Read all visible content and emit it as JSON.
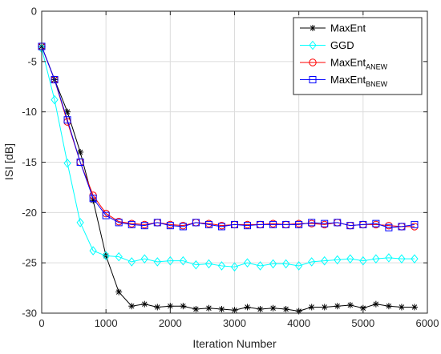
{
  "chart_data": {
    "type": "line",
    "xlabel": "Iteration Number",
    "ylabel": "ISI [dB]",
    "xlim": [
      0,
      6000
    ],
    "ylim": [
      -30,
      0
    ],
    "x_ticks": [
      0,
      1000,
      2000,
      3000,
      4000,
      5000,
      6000
    ],
    "y_ticks": [
      0,
      -5,
      -10,
      -15,
      -20,
      -25,
      -30
    ],
    "grid": true,
    "legend_position": "top-right",
    "x": [
      0,
      200,
      400,
      600,
      800,
      1000,
      1200,
      1400,
      1600,
      1800,
      2000,
      2200,
      2400,
      2600,
      2800,
      3000,
      3200,
      3400,
      3600,
      3800,
      4000,
      4200,
      4400,
      4600,
      4800,
      5000,
      5200,
      5400,
      5600,
      5800
    ],
    "series": [
      {
        "name": "MaxEnt",
        "legend_base": "MaxEnt",
        "legend_sub": "",
        "color": "#000000",
        "marker": "asterisk",
        "values": [
          -3.5,
          -6.8,
          -10.0,
          -14.0,
          -18.8,
          -24.3,
          -27.9,
          -29.3,
          -29.1,
          -29.4,
          -29.3,
          -29.3,
          -29.6,
          -29.5,
          -29.6,
          -29.7,
          -29.4,
          -29.6,
          -29.5,
          -29.6,
          -29.8,
          -29.4,
          -29.4,
          -29.3,
          -29.2,
          -29.5,
          -29.1,
          -29.3,
          -29.4,
          -29.4
        ]
      },
      {
        "name": "GGD",
        "legend_base": "GGD",
        "legend_sub": "",
        "color": "#00ffff",
        "marker": "diamond",
        "values": [
          -3.7,
          -8.8,
          -15.1,
          -21.0,
          -23.8,
          -24.3,
          -24.4,
          -24.9,
          -24.6,
          -24.9,
          -24.8,
          -24.8,
          -25.2,
          -25.1,
          -25.3,
          -25.4,
          -25.0,
          -25.3,
          -25.1,
          -25.1,
          -25.3,
          -24.9,
          -24.8,
          -24.7,
          -24.6,
          -24.8,
          -24.6,
          -24.5,
          -24.6,
          -24.6
        ]
      },
      {
        "name": "MaxEnt_ANEW",
        "legend_base": "MaxEnt",
        "legend_sub": "ANEW",
        "color": "#ff0000",
        "marker": "circle",
        "values": [
          -3.5,
          -6.8,
          -11.0,
          -15.0,
          -18.3,
          -20.1,
          -20.9,
          -21.1,
          -21.2,
          -21.0,
          -21.2,
          -21.3,
          -21.0,
          -21.1,
          -21.3,
          -21.2,
          -21.2,
          -21.2,
          -21.1,
          -21.2,
          -21.1,
          -21.1,
          -21.2,
          -21.0,
          -21.3,
          -21.2,
          -21.2,
          -21.3,
          -21.4,
          -21.4
        ]
      },
      {
        "name": "MaxEnt_BNEW",
        "legend_base": "MaxEnt",
        "legend_sub": "BNEW",
        "color": "#0000ff",
        "marker": "square",
        "values": [
          -3.5,
          -6.8,
          -10.8,
          -15.0,
          -18.6,
          -20.3,
          -21.0,
          -21.2,
          -21.3,
          -21.0,
          -21.3,
          -21.4,
          -21.0,
          -21.2,
          -21.4,
          -21.2,
          -21.3,
          -21.2,
          -21.2,
          -21.2,
          -21.2,
          -21.0,
          -21.1,
          -21.0,
          -21.3,
          -21.2,
          -21.1,
          -21.5,
          -21.4,
          -21.2
        ]
      }
    ]
  }
}
